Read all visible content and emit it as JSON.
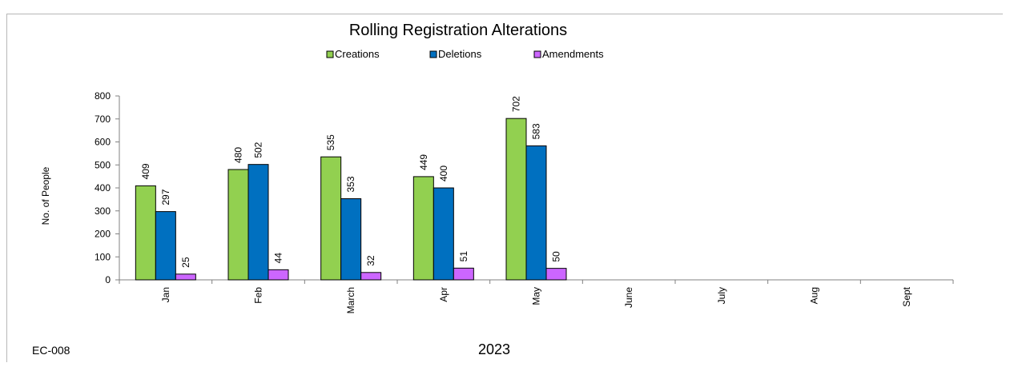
{
  "chart_data": {
    "type": "bar",
    "title": "Rolling Registration Alterations",
    "xlabel": "2023",
    "ylabel": "No. of People",
    "footer": "EC-008",
    "ylim": [
      0,
      800
    ],
    "yticks": [
      0,
      100,
      200,
      300,
      400,
      500,
      600,
      700,
      800
    ],
    "legend_position": "top",
    "categories": [
      "Jan",
      "Feb",
      "March",
      "Apr",
      "May",
      "June",
      "July",
      "Aug",
      "Sept"
    ],
    "series": [
      {
        "name": "Creations",
        "color": "#92d050",
        "values": [
          409,
          480,
          535,
          449,
          702,
          null,
          null,
          null,
          null
        ]
      },
      {
        "name": "Deletions",
        "color": "#0070c0",
        "values": [
          297,
          502,
          353,
          400,
          583,
          null,
          null,
          null,
          null
        ]
      },
      {
        "name": "Amendments",
        "color": "#cc66ff",
        "values": [
          25,
          44,
          32,
          51,
          50,
          null,
          null,
          null,
          null
        ]
      }
    ]
  }
}
